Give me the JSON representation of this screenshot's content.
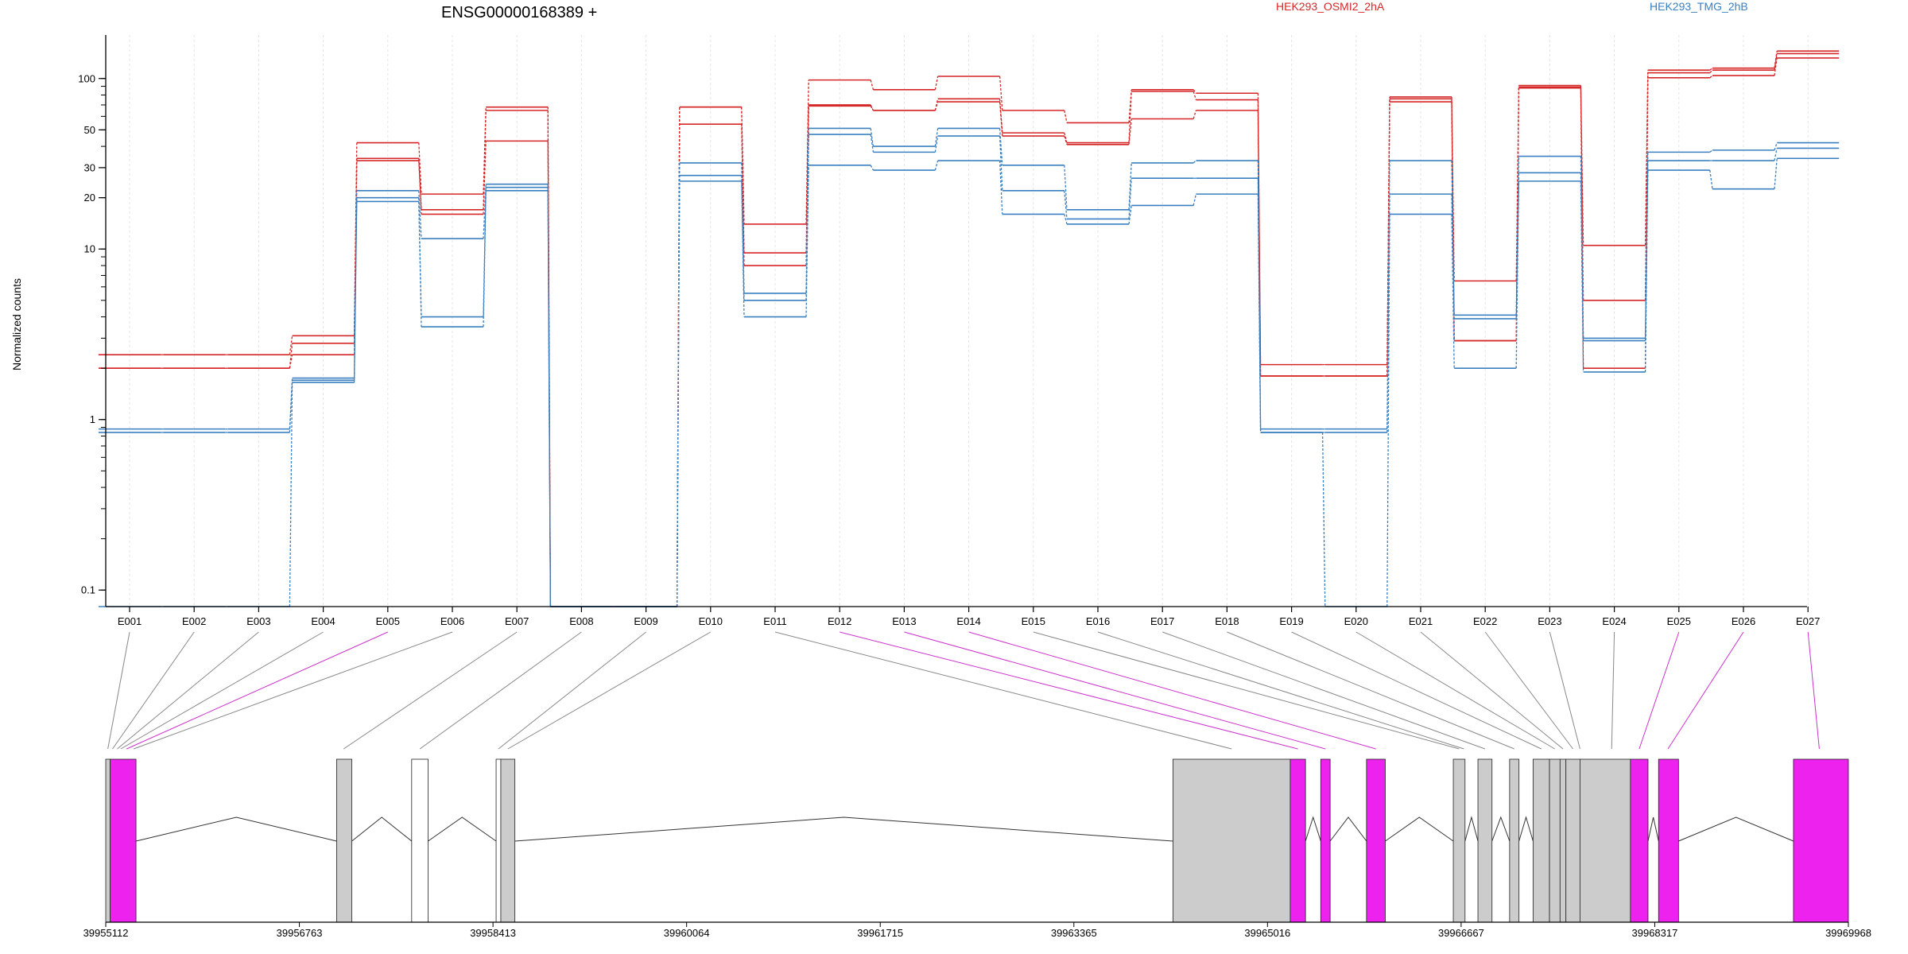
{
  "chart_data": {
    "type": "line",
    "title": "ENSG00000168389 +",
    "ylabel": "Normalized counts",
    "xlabel": "",
    "y_scale": "log",
    "ylim": [
      0.08,
      180
    ],
    "y_ticks": [
      0.1,
      1,
      10,
      20,
      30,
      50,
      100
    ],
    "grid": "vertical lines at each exon",
    "legend": [
      {
        "name": "HEK293_OSMI2_2hA",
        "color": "#d62728"
      },
      {
        "name": "HEK293_TMG_2hB",
        "color": "#3a80c0"
      }
    ],
    "exons": [
      "E001",
      "E002",
      "E003",
      "E004",
      "E005",
      "E006",
      "E007",
      "E008",
      "E009",
      "E010",
      "E011",
      "E012",
      "E013",
      "E014",
      "E015",
      "E016",
      "E017",
      "E018",
      "E019",
      "E020",
      "E021",
      "E022",
      "E023",
      "E024",
      "E025",
      "E026",
      "E027"
    ],
    "series": [
      {
        "group": "HEK293_OSMI2_2hA",
        "color": "#d62728",
        "values": [
          2.4,
          2.4,
          2.4,
          3.1,
          42,
          21,
          68,
          0.08,
          0.08,
          68,
          14,
          98,
          86,
          103,
          65,
          55,
          86,
          82,
          2.1,
          2.1,
          78,
          6.5,
          91,
          10.5,
          112,
          115,
          145
        ]
      },
      {
        "group": "HEK293_OSMI2_2hA",
        "color": "#d62728",
        "values": [
          2.0,
          2.0,
          2.0,
          2.8,
          34,
          17,
          65,
          0.08,
          0.08,
          68,
          9.5,
          70,
          65,
          76,
          48,
          42,
          84,
          75,
          1.8,
          1.8,
          76,
          2.9,
          89,
          5.0,
          108,
          112,
          140
        ]
      },
      {
        "group": "HEK293_OSMI2_2hA",
        "color": "#d62728",
        "values": [
          2.0,
          2.0,
          2.0,
          2.4,
          33,
          16,
          43,
          0.08,
          0.08,
          54,
          8,
          69,
          65,
          73,
          46,
          41,
          58,
          65,
          1.8,
          1.8,
          73,
          2.9,
          88,
          2.0,
          101,
          104,
          132
        ]
      },
      {
        "group": "HEK293_TMG_2hB",
        "color": "#3a80c0",
        "values": [
          0.88,
          0.88,
          0.88,
          1.75,
          22,
          11.5,
          24,
          0.08,
          0.08,
          32,
          5.5,
          51,
          40,
          51,
          31,
          17,
          32,
          33,
          0.88,
          0.88,
          33,
          4.1,
          35,
          3.0,
          37,
          38,
          42
        ]
      },
      {
        "group": "HEK293_TMG_2hB",
        "color": "#3a80c0",
        "values": [
          0.84,
          0.84,
          0.84,
          1.7,
          20,
          4.0,
          23,
          0.08,
          0.08,
          27,
          5,
          47,
          37,
          46,
          22,
          15,
          26,
          26,
          0.84,
          0.84,
          21,
          3.9,
          28,
          2.9,
          33,
          33,
          39
        ]
      },
      {
        "group": "HEK293_TMG_2hB",
        "color": "#3a80c0",
        "values": [
          0.08,
          0.08,
          0.08,
          1.65,
          19,
          3.5,
          22,
          0.08,
          0.08,
          25,
          4,
          31,
          29,
          33,
          16,
          14,
          18,
          21,
          0.84,
          0.08,
          16,
          2.0,
          25,
          1.9,
          29,
          22.5,
          34
        ]
      }
    ],
    "genomic_axis": {
      "ticks": [
        "39955112",
        "39956763",
        "39958413",
        "39960064",
        "39961715",
        "39963365",
        "39965016",
        "39966667",
        "39968317",
        "39969968"
      ],
      "start": 39955112,
      "end": 39969968,
      "step": 1650.67
    },
    "gene_model": {
      "features": [
        {
          "start": 39955112,
          "end": 39955150,
          "fill": "#cccccc"
        },
        {
          "start": 39955150,
          "end": 39955370,
          "fill": "#ee22ee"
        },
        {
          "start": 39957080,
          "end": 39957210,
          "fill": "#cccccc"
        },
        {
          "start": 39957720,
          "end": 39957860,
          "fill": "#ffffff"
        },
        {
          "start": 39958440,
          "end": 39958480,
          "fill": "#ffffff"
        },
        {
          "start": 39958480,
          "end": 39958600,
          "fill": "#cccccc"
        },
        {
          "start": 39964210,
          "end": 39965210,
          "fill": "#cccccc"
        },
        {
          "start": 39965210,
          "end": 39965340,
          "fill": "#ee22ee"
        },
        {
          "start": 39965470,
          "end": 39965550,
          "fill": "#ee22ee"
        },
        {
          "start": 39965860,
          "end": 39966020,
          "fill": "#ee22ee"
        },
        {
          "start": 39966600,
          "end": 39966700,
          "fill": "#cccccc"
        },
        {
          "start": 39966810,
          "end": 39966930,
          "fill": "#cccccc"
        },
        {
          "start": 39967080,
          "end": 39967160,
          "fill": "#cccccc"
        },
        {
          "start": 39967280,
          "end": 39967420,
          "fill": "#cccccc"
        },
        {
          "start": 39967420,
          "end": 39967510,
          "fill": "#cccccc"
        },
        {
          "start": 39967510,
          "end": 39967560,
          "fill": "#cccccc"
        },
        {
          "start": 39967560,
          "end": 39967680,
          "fill": "#cccccc"
        },
        {
          "start": 39967680,
          "end": 39968110,
          "fill": "#cccccc"
        },
        {
          "start": 39968110,
          "end": 39968260,
          "fill": "#ee22ee"
        },
        {
          "start": 39968350,
          "end": 39968520,
          "fill": "#ee22ee"
        },
        {
          "start": 39969500,
          "end": 39969968,
          "fill": "#ee22ee"
        }
      ],
      "exon_links": [
        {
          "exon": "E001",
          "pos": 39955130,
          "color": "#888888"
        },
        {
          "exon": "E002",
          "pos": 39955170,
          "color": "#888888"
        },
        {
          "exon": "E003",
          "pos": 39955210,
          "color": "#888888"
        },
        {
          "exon": "E004",
          "pos": 39955240,
          "color": "#888888"
        },
        {
          "exon": "E005",
          "pos": 39955290,
          "color": "#cc33cc"
        },
        {
          "exon": "E006",
          "pos": 39955350,
          "color": "#888888"
        },
        {
          "exon": "E007",
          "pos": 39957140,
          "color": "#888888"
        },
        {
          "exon": "E008",
          "pos": 39957790,
          "color": "#888888"
        },
        {
          "exon": "E009",
          "pos": 39958460,
          "color": "#888888"
        },
        {
          "exon": "E010",
          "pos": 39958540,
          "color": "#888888"
        },
        {
          "exon": "E011",
          "pos": 39964710,
          "color": "#888888"
        },
        {
          "exon": "E012",
          "pos": 39965275,
          "color": "#cc33cc"
        },
        {
          "exon": "E013",
          "pos": 39965510,
          "color": "#cc33cc"
        },
        {
          "exon": "E014",
          "pos": 39965940,
          "color": "#cc33cc"
        },
        {
          "exon": "E015",
          "pos": 39966650,
          "color": "#888888"
        },
        {
          "exon": "E016",
          "pos": 39966690,
          "color": "#888888"
        },
        {
          "exon": "E017",
          "pos": 39966870,
          "color": "#888888"
        },
        {
          "exon": "E018",
          "pos": 39967120,
          "color": "#888888"
        },
        {
          "exon": "E019",
          "pos": 39967350,
          "color": "#888888"
        },
        {
          "exon": "E020",
          "pos": 39967465,
          "color": "#888888"
        },
        {
          "exon": "E021",
          "pos": 39967535,
          "color": "#888888"
        },
        {
          "exon": "E022",
          "pos": 39967620,
          "color": "#888888"
        },
        {
          "exon": "E023",
          "pos": 39967680,
          "color": "#888888"
        },
        {
          "exon": "E024",
          "pos": 39967950,
          "color": "#888888"
        },
        {
          "exon": "E025",
          "pos": 39968185,
          "color": "#cc33cc"
        },
        {
          "exon": "E026",
          "pos": 39968430,
          "color": "#cc33cc"
        },
        {
          "exon": "E027",
          "pos": 39969720,
          "color": "#cc33cc"
        }
      ]
    }
  }
}
